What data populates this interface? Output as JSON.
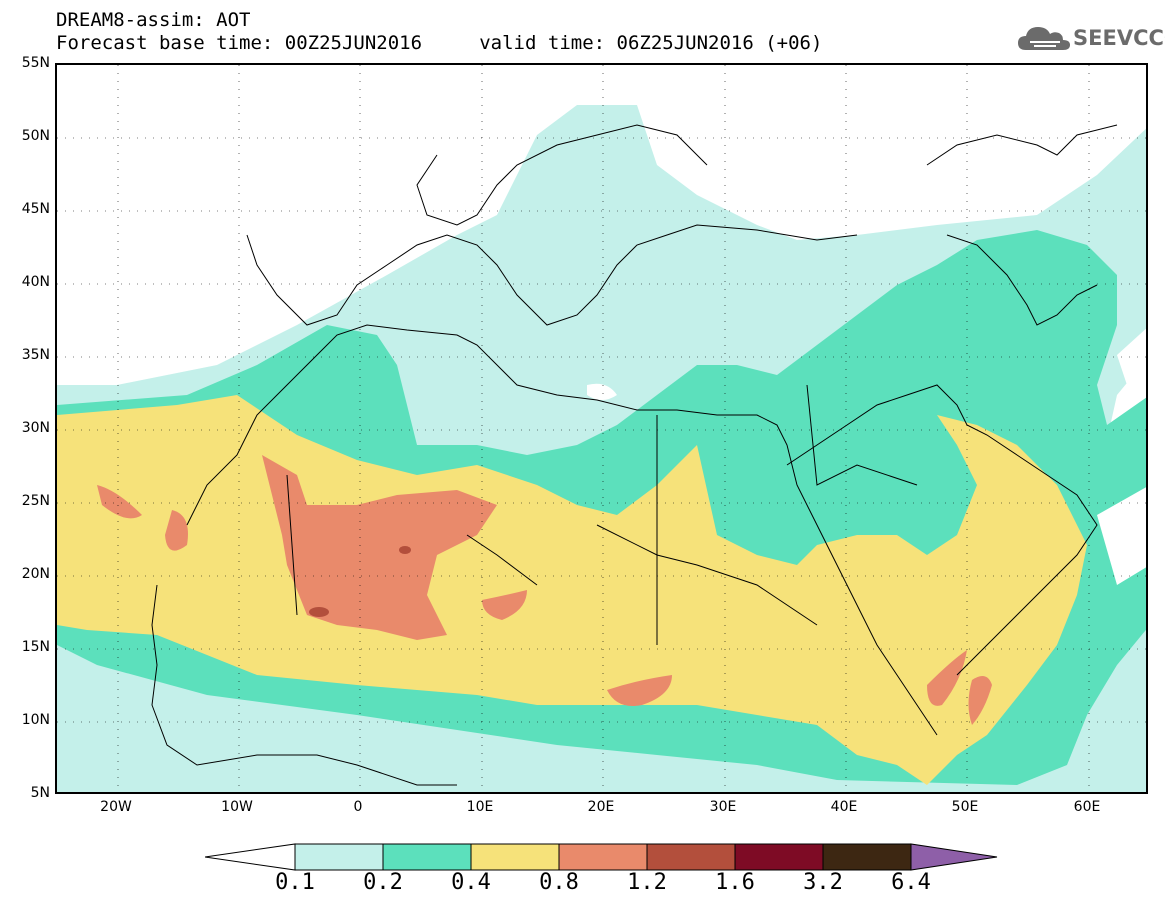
{
  "header": {
    "title": "DREAM8-assim: AOT",
    "forecast_line": "Forecast base time: 00Z25JUN2016     valid time: 06Z25JUN2016 (+06)"
  },
  "logo": {
    "text": "SEEVCCC",
    "icon": "cloud-icon"
  },
  "map": {
    "lon_range": [
      -25,
      65
    ],
    "lat_range": [
      5,
      55
    ],
    "lat_labels": [
      "55N",
      "50N",
      "45N",
      "40N",
      "35N",
      "30N",
      "25N",
      "20N",
      "15N",
      "10N",
      "5N"
    ],
    "lon_labels": [
      "20W",
      "10W",
      "0",
      "10E",
      "20E",
      "30E",
      "40E",
      "50E",
      "60E"
    ]
  },
  "legend": {
    "labels": [
      "0.1",
      "0.2",
      "0.4",
      "0.8",
      "1.2",
      "1.6",
      "3.2",
      "6.4"
    ],
    "colors": [
      "#ffffff",
      "#c4f0ea",
      "#5ce0bc",
      "#f6e27a",
      "#e98a6b",
      "#b34f3c",
      "#7e0b25",
      "#3d2712",
      "#8e5fa8"
    ]
  },
  "colors": {
    "c01": "#c4f0ea",
    "c02": "#5ce0bc",
    "c04": "#f6e27a",
    "c08": "#e98a6b",
    "c12": "#b34f3c"
  }
}
